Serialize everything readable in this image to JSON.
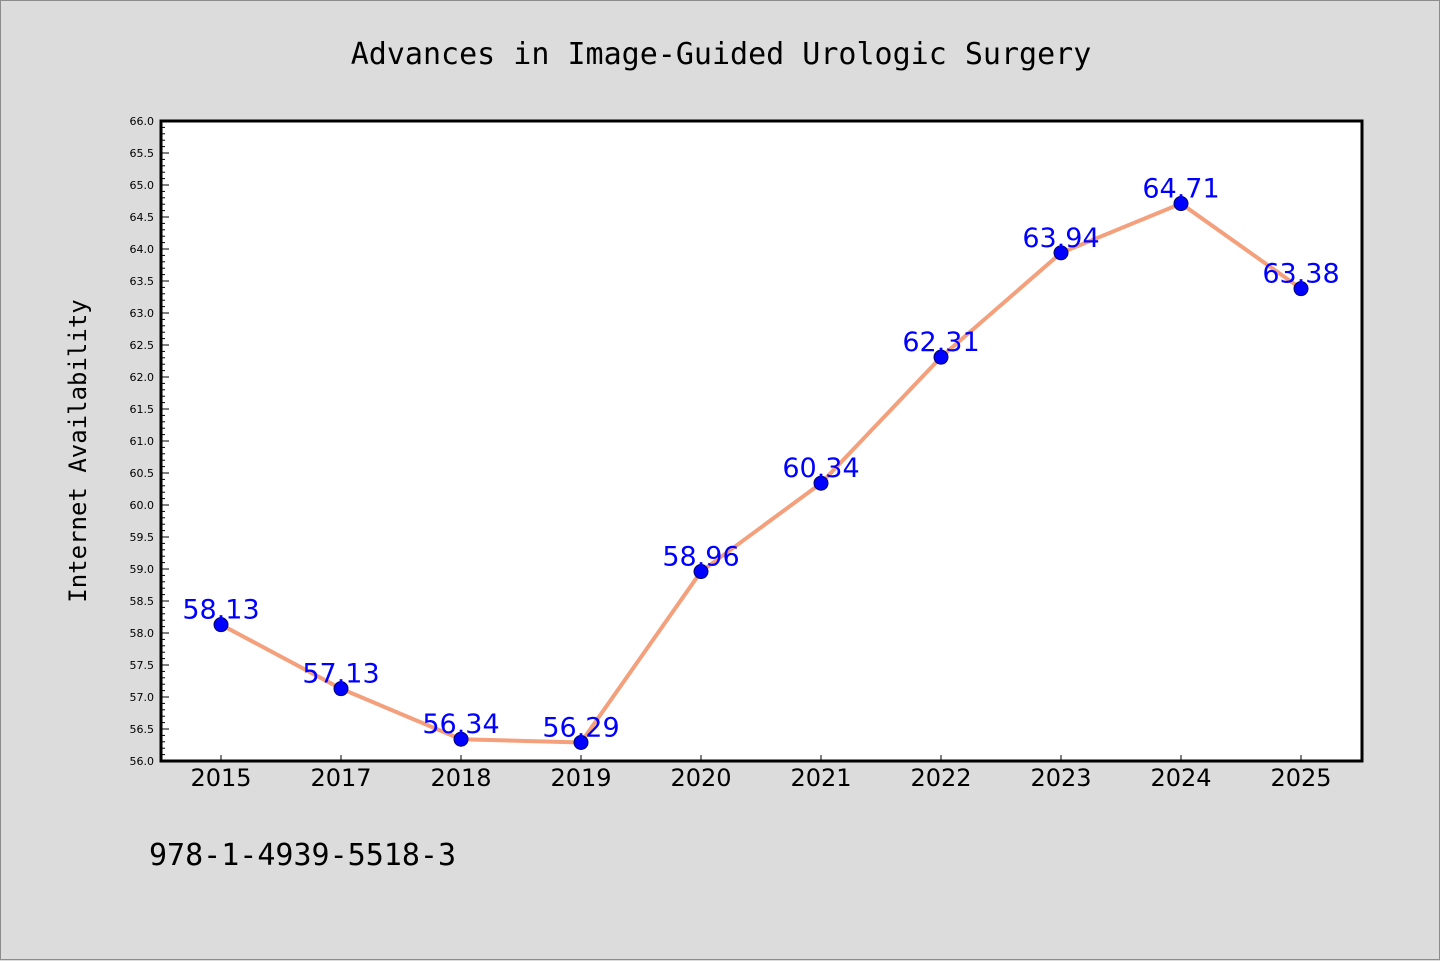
{
  "chart_data": {
    "type": "line",
    "title": "Advances in Image-Guided Urologic Surgery",
    "xlabel": "",
    "ylabel": "Internet Availability",
    "categories": [
      "2015",
      "2017",
      "2018",
      "2019",
      "2020",
      "2021",
      "2022",
      "2023",
      "2024",
      "2025"
    ],
    "series": [
      {
        "values": [
          58.13,
          57.13,
          56.34,
          56.29,
          58.96,
          60.34,
          62.31,
          63.94,
          64.71,
          63.38
        ]
      }
    ],
    "data_labels": [
      "58.13",
      "57.13",
      "56.34",
      "56.29",
      "58.96",
      "60.34",
      "62.31",
      "63.94",
      "64.71",
      "63.38"
    ],
    "ylim": [
      56.0,
      66.0
    ],
    "ytick_step": 0.5,
    "grid": false,
    "legend": "none",
    "line_color": "#f4a07c",
    "marker_color": "#0000ff",
    "label_color": "#0000ff"
  },
  "footer": {
    "isbn": "978-1-4939-5518-3"
  }
}
